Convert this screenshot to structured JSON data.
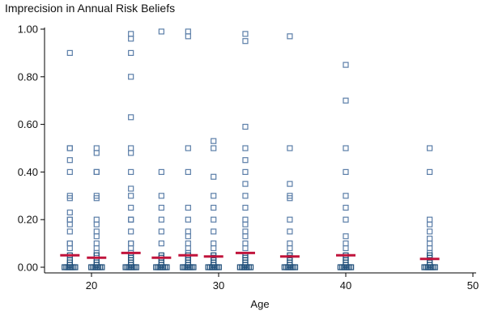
{
  "chart_data": {
    "type": "scatter",
    "title": "Imprecision in Annual Risk Beliefs",
    "xlabel": "Age",
    "ylabel": "",
    "xlim": [
      15,
      50
    ],
    "ylim": [
      0,
      1
    ],
    "x_ticks": [
      20,
      30,
      40,
      50
    ],
    "y_ticks": [
      0,
      0.2,
      0.4,
      0.6,
      0.8,
      1.0
    ],
    "x_tick_labels": [
      "20",
      "30",
      "40",
      "50"
    ],
    "y_tick_labels": [
      "0.00",
      "0.20",
      "0.40",
      "0.60",
      "0.80",
      "1.00"
    ],
    "grid": false,
    "legend": "none",
    "colors": {
      "points": "#5b7ea8",
      "dense_points": "#1f4e79",
      "mean": "#c0143c"
    },
    "marker": "hollow-square",
    "groups": [
      {
        "x": 18.3,
        "mean": 0.05,
        "values": [
          0.9,
          0.5,
          0.5,
          0.45,
          0.4,
          0.3,
          0.29,
          0.23,
          0.2,
          0.2,
          0.18,
          0.15,
          0.1,
          0.1,
          0.08,
          0.05,
          0.03,
          0.02,
          0.01,
          0.0
        ]
      },
      {
        "x": 20.4,
        "mean": 0.04,
        "values": [
          0.5,
          0.48,
          0.4,
          0.4,
          0.3,
          0.29,
          0.2,
          0.18,
          0.15,
          0.13,
          0.1,
          0.08,
          0.06,
          0.05,
          0.03,
          0.02,
          0.01,
          0.0
        ]
      },
      {
        "x": 23.1,
        "mean": 0.06,
        "values": [
          0.98,
          0.96,
          0.9,
          0.8,
          0.63,
          0.5,
          0.48,
          0.4,
          0.33,
          0.3,
          0.25,
          0.2,
          0.2,
          0.15,
          0.1,
          0.1,
          0.08,
          0.06,
          0.05,
          0.04,
          0.03,
          0.02,
          0.01,
          0.0
        ]
      },
      {
        "x": 25.5,
        "mean": 0.04,
        "values": [
          0.99,
          0.4,
          0.3,
          0.25,
          0.2,
          0.15,
          0.1,
          0.05,
          0.04,
          0.03,
          0.02,
          0.01,
          0.0
        ]
      },
      {
        "x": 27.6,
        "mean": 0.05,
        "values": [
          0.99,
          0.97,
          0.5,
          0.4,
          0.25,
          0.2,
          0.15,
          0.13,
          0.1,
          0.08,
          0.06,
          0.05,
          0.04,
          0.03,
          0.02,
          0.01,
          0.0
        ]
      },
      {
        "x": 29.6,
        "mean": 0.045,
        "values": [
          0.53,
          0.5,
          0.38,
          0.3,
          0.25,
          0.2,
          0.15,
          0.1,
          0.08,
          0.05,
          0.04,
          0.03,
          0.02,
          0.01,
          0.0
        ]
      },
      {
        "x": 32.1,
        "mean": 0.06,
        "values": [
          0.98,
          0.95,
          0.59,
          0.5,
          0.45,
          0.4,
          0.35,
          0.3,
          0.25,
          0.2,
          0.18,
          0.15,
          0.13,
          0.1,
          0.08,
          0.05,
          0.04,
          0.03,
          0.02,
          0.01,
          0.0
        ]
      },
      {
        "x": 35.6,
        "mean": 0.045,
        "values": [
          0.97,
          0.5,
          0.35,
          0.3,
          0.29,
          0.2,
          0.15,
          0.1,
          0.08,
          0.05,
          0.04,
          0.03,
          0.02,
          0.01,
          0.0
        ]
      },
      {
        "x": 40.0,
        "mean": 0.05,
        "values": [
          0.85,
          0.7,
          0.5,
          0.4,
          0.3,
          0.25,
          0.2,
          0.13,
          0.1,
          0.08,
          0.05,
          0.04,
          0.03,
          0.02,
          0.01,
          0.0
        ]
      },
      {
        "x": 46.6,
        "mean": 0.035,
        "values": [
          0.5,
          0.4,
          0.2,
          0.18,
          0.15,
          0.12,
          0.1,
          0.08,
          0.06,
          0.05,
          0.04,
          0.03,
          0.02,
          0.01,
          0.0
        ]
      }
    ]
  }
}
